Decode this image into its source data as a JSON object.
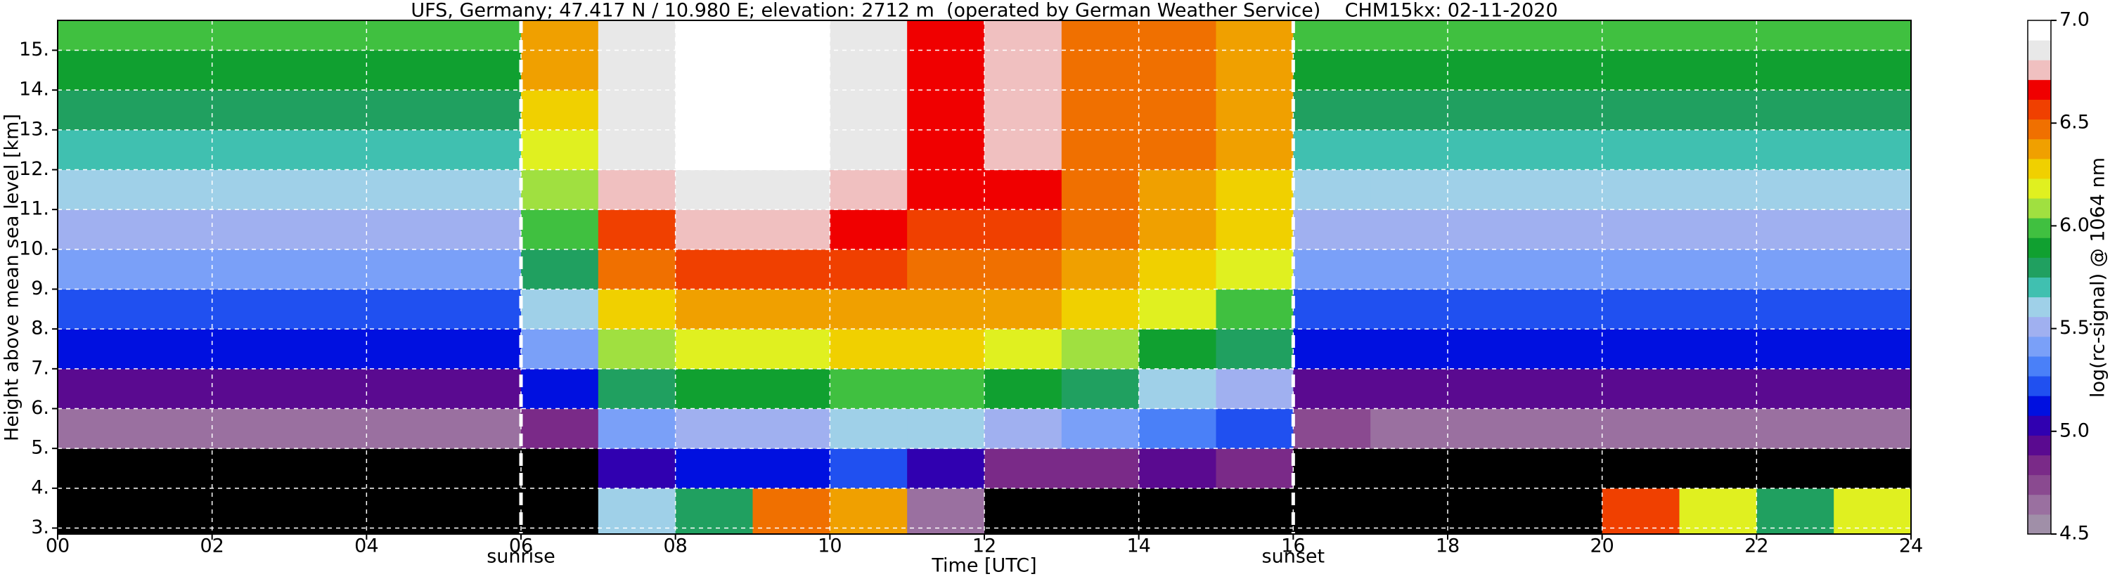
{
  "chart_data": {
    "type": "heatmap",
    "title": "UFS, Germany; 47.417 N / 10.980 E; elevation: 2712 m  (operated by German Weather Service)    CHM15kx: 02-11-2020",
    "xlabel": "Time [UTC]",
    "ylabel": "Height above mean sea level [km]",
    "colorbar_label": "log(rc-signal) @ 1064 nm",
    "xlim": [
      0,
      24
    ],
    "ylim": [
      2.85,
      15.75
    ],
    "xticks": [
      {
        "value": 0,
        "label": "00"
      },
      {
        "value": 2,
        "label": "02"
      },
      {
        "value": 4,
        "label": "04"
      },
      {
        "value": 6,
        "label": "06"
      },
      {
        "value": 8,
        "label": "08"
      },
      10,
      12,
      14,
      16,
      18,
      20,
      22,
      24
    ],
    "yticks": [
      {
        "value": 3,
        "label": "3."
      },
      {
        "value": 4,
        "label": "4."
      },
      {
        "value": 5,
        "label": "5."
      },
      {
        "value": 6,
        "label": "6."
      },
      {
        "value": 7,
        "label": "7."
      },
      {
        "value": 8,
        "label": "8."
      },
      {
        "value": 9,
        "label": "9."
      },
      {
        "value": 10,
        "label": "10."
      },
      {
        "value": 11,
        "label": "11."
      },
      {
        "value": 12,
        "label": "12."
      },
      {
        "value": 13,
        "label": "13."
      },
      {
        "value": 14,
        "label": "14."
      },
      {
        "value": 15,
        "label": "15."
      }
    ],
    "clim": [
      4.5,
      7.0
    ],
    "cticks": [
      4.5,
      {
        "value": 5,
        "label": "5.0"
      },
      5.5,
      {
        "value": 6,
        "label": "6.0"
      },
      6.5,
      {
        "value": 7,
        "label": "7.0"
      }
    ],
    "colors": [
      "#a08fa8",
      "#9a70a0",
      "#8a4a90",
      "#7a2a88",
      "#5a0a90",
      "#3000b0",
      "#0010e0",
      "#2050f0",
      "#4a80f8",
      "#7aa0f8",
      "#a0b0f0",
      "#9fd0e8",
      "#40c0b0",
      "#20a060",
      "#10a030",
      "#40c040",
      "#a0e040",
      "#e0f020",
      "#f0d000",
      "#f0a000",
      "#f07000",
      "#f04000",
      "#f00000",
      "#f0c0c0",
      "#e8e8e8",
      "#ffffff"
    ],
    "below_color": "#000000",
    "grid": true,
    "xbins": [
      0,
      1,
      2,
      3,
      4,
      5,
      6,
      7,
      8,
      9,
      10,
      11,
      12,
      13,
      14,
      15,
      16,
      17,
      18,
      19,
      20,
      21,
      22,
      23,
      24
    ],
    "ybins": [
      2.85,
      4,
      5,
      6,
      7,
      8,
      9,
      10,
      11,
      12,
      13,
      14,
      15,
      15.75
    ],
    "z": [
      [
        4.2,
        4.2,
        4.2,
        4.2,
        4.2,
        4.2,
        4.3,
        5.6,
        5.8,
        6.5,
        6.4,
        4.6,
        4.3,
        4.3,
        4.3,
        4.3,
        4.2,
        4.2,
        4.2,
        4.2,
        6.6,
        6.2,
        5.8,
        6.2
      ],
      [
        4.3,
        4.3,
        4.3,
        4.3,
        4.3,
        4.3,
        4.4,
        5.0,
        5.1,
        5.1,
        5.2,
        5.0,
        4.8,
        4.8,
        4.9,
        4.8,
        4.3,
        4.3,
        4.3,
        4.3,
        4.3,
        4.3,
        4.3,
        4.3
      ],
      [
        4.6,
        4.6,
        4.6,
        4.6,
        4.6,
        4.6,
        4.8,
        5.4,
        5.5,
        5.5,
        5.6,
        5.6,
        5.5,
        5.4,
        5.3,
        5.2,
        4.7,
        4.6,
        4.6,
        4.6,
        4.6,
        4.6,
        4.6,
        4.6
      ],
      [
        4.9,
        4.9,
        4.9,
        4.9,
        4.9,
        4.9,
        5.1,
        5.8,
        5.9,
        5.9,
        6.0,
        6.0,
        5.9,
        5.8,
        5.6,
        5.5,
        4.9,
        4.9,
        4.9,
        4.9,
        4.9,
        4.9,
        4.9,
        4.9
      ],
      [
        5.1,
        5.1,
        5.1,
        5.1,
        5.1,
        5.1,
        5.4,
        6.1,
        6.2,
        6.2,
        6.3,
        6.3,
        6.2,
        6.1,
        5.9,
        5.8,
        5.1,
        5.1,
        5.1,
        5.1,
        5.1,
        5.1,
        5.1,
        5.1
      ],
      [
        5.2,
        5.2,
        5.2,
        5.2,
        5.2,
        5.2,
        5.6,
        6.3,
        6.4,
        6.4,
        6.4,
        6.4,
        6.4,
        6.3,
        6.2,
        6.0,
        5.2,
        5.2,
        5.2,
        5.2,
        5.2,
        5.2,
        5.2,
        5.2
      ],
      [
        5.4,
        5.4,
        5.4,
        5.4,
        5.4,
        5.4,
        5.8,
        6.5,
        6.6,
        6.6,
        6.6,
        6.5,
        6.5,
        6.4,
        6.3,
        6.2,
        5.4,
        5.4,
        5.4,
        5.4,
        5.4,
        5.4,
        5.4,
        5.4
      ],
      [
        5.5,
        5.5,
        5.5,
        5.5,
        5.5,
        5.5,
        6.0,
        6.6,
        6.8,
        6.8,
        6.7,
        6.6,
        6.6,
        6.5,
        6.4,
        6.3,
        5.5,
        5.5,
        5.5,
        5.5,
        5.5,
        5.5,
        5.5,
        5.5
      ],
      [
        5.6,
        5.6,
        5.6,
        5.6,
        5.6,
        5.6,
        6.1,
        6.8,
        6.9,
        6.9,
        6.8,
        6.7,
        6.7,
        6.5,
        6.4,
        6.3,
        5.6,
        5.6,
        5.6,
        5.6,
        5.6,
        5.6,
        5.6,
        5.6
      ],
      [
        5.7,
        5.7,
        5.7,
        5.7,
        5.7,
        5.7,
        6.2,
        6.9,
        7.0,
        7.0,
        6.9,
        6.7,
        6.8,
        6.5,
        6.5,
        6.4,
        5.7,
        5.7,
        5.7,
        5.7,
        5.7,
        5.7,
        5.7,
        5.7
      ],
      [
        5.8,
        5.8,
        5.8,
        5.8,
        5.8,
        5.8,
        6.3,
        6.9,
        7.0,
        7.0,
        6.9,
        6.7,
        6.8,
        6.5,
        6.5,
        6.4,
        5.8,
        5.8,
        5.8,
        5.8,
        5.8,
        5.8,
        5.8,
        5.8
      ],
      [
        5.9,
        5.9,
        5.9,
        5.9,
        5.9,
        5.9,
        6.4,
        6.9,
        7.0,
        7.0,
        6.9,
        6.7,
        6.8,
        6.5,
        6.5,
        6.4,
        5.9,
        5.9,
        5.9,
        5.9,
        5.9,
        5.9,
        5.9,
        5.9
      ],
      [
        6.0,
        6.0,
        6.0,
        6.0,
        6.0,
        6.0,
        6.4,
        6.9,
        7.0,
        7.0,
        6.9,
        6.7,
        6.8,
        6.5,
        6.5,
        6.4,
        6.0,
        6.0,
        6.0,
        6.0,
        6.0,
        6.0,
        6.0,
        6.0
      ]
    ],
    "annotations": [
      {
        "x": 6,
        "label": "sunrise"
      },
      {
        "x": 16,
        "label": "sunset"
      }
    ]
  }
}
